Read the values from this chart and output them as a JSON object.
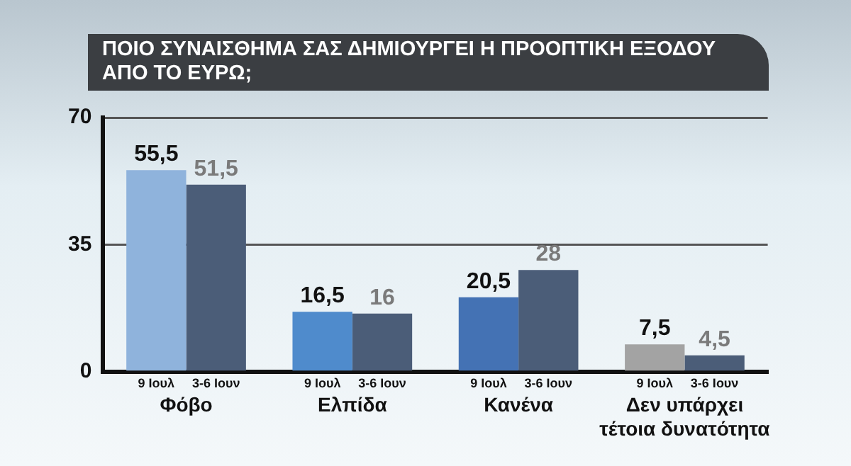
{
  "chart_data": {
    "type": "bar",
    "title": "ΠΟΙΟ ΣΥΝΑΙΣΘΗΜΑ ΣΑΣ ΔΗΜΙΟΥΡΓΕΙ Η ΠΡΟΟΠΤΙΚΗ ΕΞΟΔΟΥ ΑΠΟ ΤΟ ΕΥΡΩ;",
    "categories": [
      "Φόβο",
      "Ελπίδα",
      "Κανένα",
      "Δεν υπάρχει τέτοια δυνατότητα"
    ],
    "series": [
      {
        "name": "9 Ιουλ",
        "colors": [
          "#8fb3dc",
          "#4f8bcc",
          "#4472b4",
          "#a3a3a3"
        ],
        "values": [
          55.5,
          16.5,
          20.5,
          7.5
        ],
        "value_labels": [
          "55,5",
          "16,5",
          "20,5",
          "7,5"
        ]
      },
      {
        "name": "3-6 Ιουν",
        "colors": [
          "#4b5d78",
          "#4b5d78",
          "#4b5d78",
          "#4b5d78"
        ],
        "values": [
          51.5,
          16,
          28,
          4.5
        ],
        "value_labels": [
          "51,5",
          "16",
          "28",
          "4,5"
        ]
      }
    ],
    "ylim": [
      0,
      70
    ],
    "yticks": [
      0,
      35,
      70
    ],
    "grid": "y",
    "legend": false
  }
}
